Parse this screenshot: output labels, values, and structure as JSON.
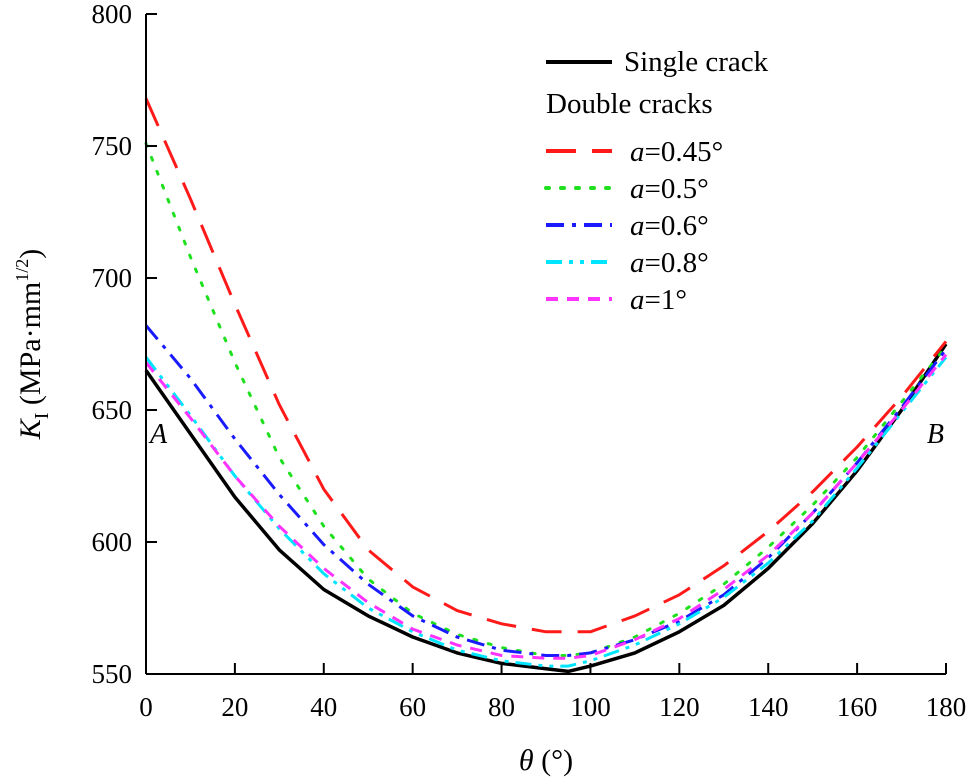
{
  "chart_data": {
    "type": "line",
    "title": "",
    "xlabel": "θ (°)",
    "ylabel": "K_I (MPa·mm^1/2)",
    "ylabel_parts": {
      "symbol": "K",
      "subscript": "I",
      "unit_prefix": "(MPa·mm",
      "unit_sup": "1/2",
      "unit_suffix": ")"
    },
    "xlabel_parts": {
      "symbol": "θ",
      "unit": " (°)"
    },
    "xlim": [
      0,
      180
    ],
    "ylim": [
      550,
      800
    ],
    "xticks": [
      0,
      20,
      40,
      60,
      80,
      100,
      120,
      140,
      160,
      180
    ],
    "yticks": [
      550,
      600,
      650,
      700,
      750,
      800
    ],
    "grid": false,
    "legend_position": "top-right",
    "legend_heading": "Double cracks",
    "annotations": [
      {
        "text": "A",
        "x": 0,
        "y": 645
      },
      {
        "text": "B",
        "x": 180,
        "y": 645
      }
    ],
    "x": [
      0,
      10,
      20,
      30,
      40,
      50,
      60,
      70,
      80,
      90,
      95,
      100,
      110,
      120,
      130,
      140,
      150,
      160,
      170,
      180
    ],
    "series": [
      {
        "name": "Single crack",
        "legend_label": "Single crack",
        "color": "#000000",
        "dash": "solid",
        "values": [
          665,
          641,
          617,
          597,
          582,
          572,
          564,
          558,
          554,
          552,
          551,
          553,
          558,
          566,
          576,
          590,
          607,
          627,
          650,
          675
        ]
      },
      {
        "name": "a=0.45°",
        "legend_prefix": "a",
        "legend_suffix": "=0.45°",
        "color": "#ff1a1a",
        "dash": "long",
        "values": [
          768,
          730,
          690,
          652,
          620,
          597,
          583,
          574,
          569,
          566,
          566,
          566,
          572,
          580,
          591,
          604,
          619,
          636,
          655,
          676
        ]
      },
      {
        "name": "a=0.5°",
        "legend_prefix": "a",
        "legend_suffix": "=0.5°",
        "color": "#1fe01f",
        "dash": "dot",
        "values": [
          751,
          708,
          668,
          632,
          606,
          586,
          573,
          565,
          560,
          557,
          557,
          558,
          564,
          573,
          584,
          598,
          614,
          632,
          653,
          674
        ]
      },
      {
        "name": "a=0.6°",
        "legend_prefix": "a",
        "legend_suffix": "=0.6°",
        "color": "#1a1aff",
        "dash": "dashdot",
        "values": [
          682,
          662,
          639,
          618,
          599,
          584,
          572,
          564,
          559,
          557,
          557,
          558,
          563,
          570,
          580,
          594,
          611,
          630,
          651,
          673
        ]
      },
      {
        "name": "a=0.8°",
        "legend_prefix": "a",
        "legend_suffix": "=0.8°",
        "color": "#00e5ff",
        "dash": "dashdotdot",
        "values": [
          670,
          648,
          625,
          605,
          588,
          575,
          566,
          559,
          555,
          553,
          553,
          555,
          561,
          569,
          579,
          592,
          608,
          628,
          649,
          670
        ]
      },
      {
        "name": "a=1°",
        "legend_prefix": "a",
        "legend_suffix": "=1°",
        "color": "#ff33ff",
        "dash": "dash",
        "values": [
          668,
          647,
          625,
          606,
          590,
          577,
          567,
          561,
          557,
          556,
          556,
          557,
          563,
          571,
          582,
          595,
          611,
          630,
          650,
          671
        ]
      }
    ]
  }
}
